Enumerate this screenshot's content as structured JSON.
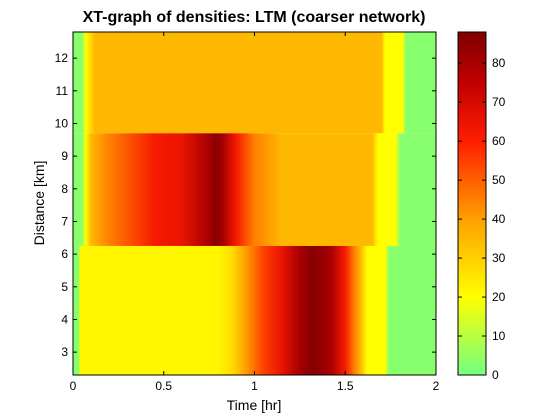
{
  "chart_data": {
    "type": "heatmap",
    "title": "XT-graph of densities: LTM (coarser network)",
    "xlabel": "Time [hr]",
    "ylabel": "Distance [km]",
    "xlim": [
      0,
      2
    ],
    "ylim": [
      2.3,
      12.8
    ],
    "xticks": [
      "0",
      "0.5",
      "1",
      "1.5",
      "2"
    ],
    "yticks": [
      "3",
      "4",
      "5",
      "6",
      "7",
      "8",
      "9",
      "10",
      "11",
      "12"
    ],
    "colorbar": {
      "range": [
        0,
        88
      ],
      "ticks": [
        "0",
        "10",
        "20",
        "30",
        "40",
        "50",
        "60",
        "70",
        "80"
      ],
      "colorscale": [
        [
          0,
          "#73ff80"
        ],
        [
          20,
          "#ffff00"
        ],
        [
          40,
          "#ffa000"
        ],
        [
          60,
          "#ff1e00"
        ],
        [
          75,
          "#c00000"
        ],
        [
          88,
          "#800000"
        ]
      ]
    },
    "bands": [
      {
        "distance_range": [
          9.7,
          12.8
        ],
        "profile": [
          [
            0,
            3
          ],
          [
            0.05,
            3
          ],
          [
            0.07,
            20
          ],
          [
            0.12,
            35
          ],
          [
            1.7,
            35
          ],
          [
            1.72,
            20
          ],
          [
            1.82,
            20
          ],
          [
            1.83,
            3
          ],
          [
            2,
            3
          ]
        ]
      },
      {
        "distance_range": [
          6.25,
          9.7
        ],
        "profile": [
          [
            0,
            3
          ],
          [
            0.05,
            3
          ],
          [
            0.07,
            20
          ],
          [
            0.1,
            35
          ],
          [
            0.2,
            45
          ],
          [
            0.45,
            62
          ],
          [
            0.6,
            65
          ],
          [
            0.75,
            80
          ],
          [
            0.78,
            86
          ],
          [
            0.82,
            82
          ],
          [
            0.9,
            62
          ],
          [
            1.0,
            45
          ],
          [
            1.15,
            35
          ],
          [
            1.65,
            35
          ],
          [
            1.68,
            20
          ],
          [
            1.78,
            20
          ],
          [
            1.8,
            3
          ],
          [
            2,
            3
          ]
        ]
      },
      {
        "distance_range": [
          2.3,
          6.25
        ],
        "profile": [
          [
            0,
            3
          ],
          [
            0.03,
            3
          ],
          [
            0.04,
            22
          ],
          [
            0.8,
            22
          ],
          [
            0.88,
            28
          ],
          [
            0.95,
            40
          ],
          [
            1.05,
            55
          ],
          [
            1.15,
            65
          ],
          [
            1.25,
            80
          ],
          [
            1.32,
            87
          ],
          [
            1.42,
            80
          ],
          [
            1.5,
            62
          ],
          [
            1.55,
            45
          ],
          [
            1.6,
            30
          ],
          [
            1.62,
            20
          ],
          [
            1.72,
            20
          ],
          [
            1.74,
            3
          ],
          [
            2,
            3
          ]
        ]
      }
    ]
  }
}
